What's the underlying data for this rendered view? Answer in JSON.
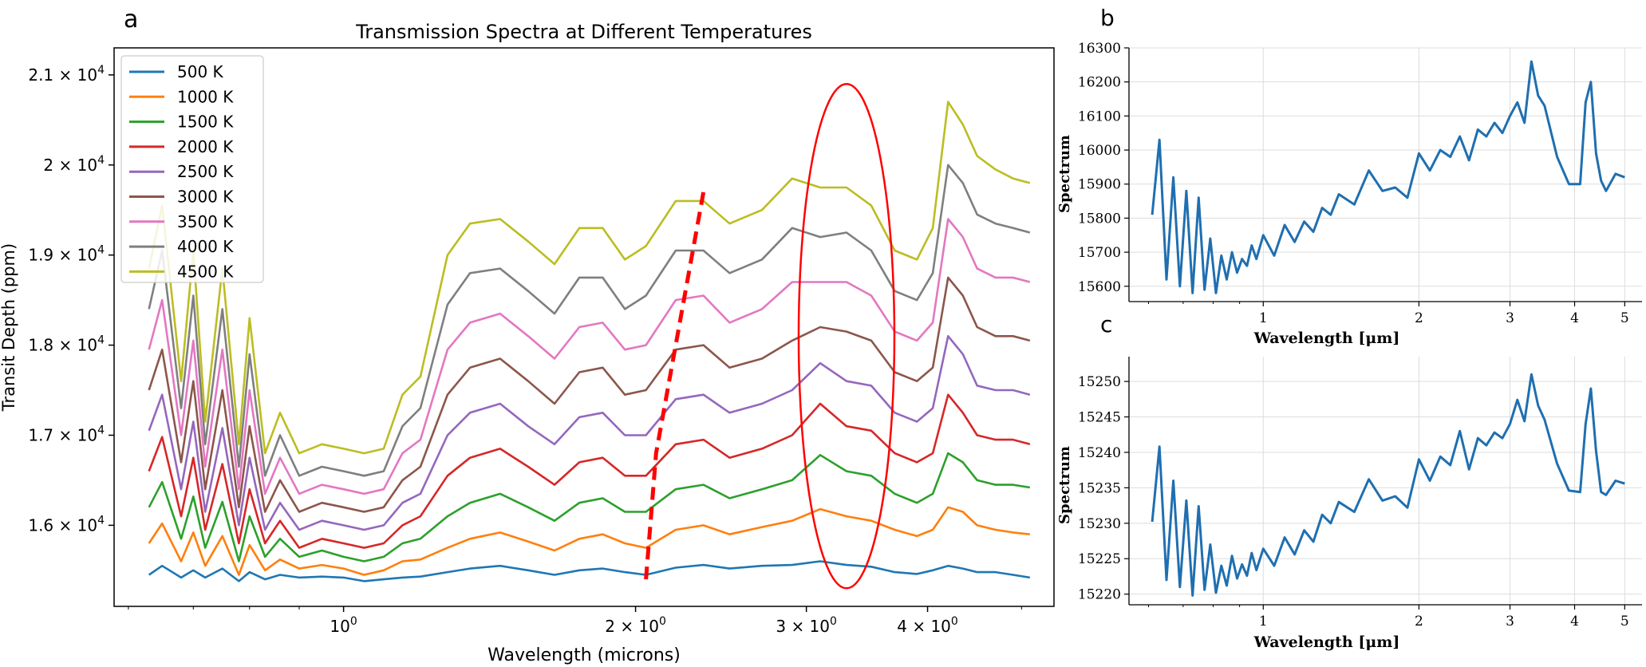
{
  "panel_labels": {
    "a": "a",
    "b": "b",
    "c": "c"
  },
  "colors": {
    "annotation": "#ff0000",
    "b_c_line": "#1f6fb0",
    "series": [
      "#1f77b4",
      "#ff7f0e",
      "#2ca02c",
      "#d62728",
      "#9467bd",
      "#8c564b",
      "#e377c2",
      "#7f7f7f",
      "#bcbd22"
    ]
  },
  "chart_data": [
    {
      "id": "a",
      "type": "line",
      "title": "Transmission Spectra at Different Temperatures",
      "xlabel": "Wavelength (microns)",
      "ylabel": "Transit Depth (ppm)",
      "xscale": "log",
      "xlim": [
        0.58,
        5.4
      ],
      "ylim": [
        15100,
        21300
      ],
      "xticks": [
        {
          "value": 1,
          "base": "10",
          "exp": "0"
        },
        {
          "value": 2,
          "base": "2 × 10",
          "exp": "0"
        },
        {
          "value": 3,
          "base": "3 × 10",
          "exp": "0"
        },
        {
          "value": 4,
          "base": "4 × 10",
          "exp": "0"
        }
      ],
      "yticks": [
        {
          "value": 16000,
          "base": "1.6 × 10",
          "exp": "4"
        },
        {
          "value": 17000,
          "base": "1.7 × 10",
          "exp": "4"
        },
        {
          "value": 18000,
          "base": "1.8 × 10",
          "exp": "4"
        },
        {
          "value": 19000,
          "base": "1.9 × 10",
          "exp": "4"
        },
        {
          "value": 20000,
          "base": "2 × 10",
          "exp": "4"
        },
        {
          "value": 21000,
          "base": "2.1 × 10",
          "exp": "4"
        }
      ],
      "legend_position": "upper-left",
      "x": [
        0.63,
        0.65,
        0.68,
        0.7,
        0.72,
        0.75,
        0.78,
        0.8,
        0.83,
        0.86,
        0.9,
        0.95,
        1.0,
        1.05,
        1.1,
        1.15,
        1.2,
        1.28,
        1.35,
        1.45,
        1.55,
        1.65,
        1.75,
        1.85,
        1.95,
        2.05,
        2.2,
        2.35,
        2.5,
        2.7,
        2.9,
        3.1,
        3.3,
        3.5,
        3.7,
        3.9,
        4.05,
        4.2,
        4.35,
        4.5,
        4.7,
        4.9,
        5.1
      ],
      "series": [
        {
          "name": "500 K",
          "values": [
            15450,
            15550,
            15420,
            15500,
            15420,
            15520,
            15380,
            15480,
            15400,
            15450,
            15420,
            15430,
            15420,
            15380,
            15400,
            15420,
            15430,
            15480,
            15520,
            15550,
            15500,
            15450,
            15500,
            15520,
            15480,
            15450,
            15530,
            15560,
            15520,
            15550,
            15560,
            15600,
            15560,
            15540,
            15480,
            15460,
            15500,
            15550,
            15520,
            15480,
            15480,
            15450,
            15420
          ]
        },
        {
          "name": "1000 K",
          "values": [
            15800,
            16020,
            15600,
            15920,
            15550,
            15880,
            15450,
            15780,
            15500,
            15620,
            15520,
            15560,
            15520,
            15450,
            15500,
            15600,
            15620,
            15750,
            15850,
            15920,
            15820,
            15720,
            15850,
            15900,
            15800,
            15750,
            15950,
            16000,
            15900,
            15980,
            16050,
            16180,
            16100,
            16050,
            15950,
            15880,
            15950,
            16200,
            16150,
            16000,
            15950,
            15920,
            15900
          ]
        },
        {
          "name": "1500 K",
          "values": [
            16200,
            16480,
            15850,
            16320,
            15750,
            16260,
            15600,
            16100,
            15650,
            15850,
            15650,
            15720,
            15650,
            15600,
            15650,
            15800,
            15850,
            16100,
            16250,
            16350,
            16200,
            16050,
            16250,
            16300,
            16150,
            16150,
            16400,
            16450,
            16300,
            16400,
            16500,
            16780,
            16600,
            16550,
            16350,
            16250,
            16350,
            16800,
            16700,
            16500,
            16450,
            16450,
            16420
          ]
        },
        {
          "name": "2000 K",
          "values": [
            16600,
            16980,
            16100,
            16750,
            15950,
            16680,
            15800,
            16400,
            15800,
            16050,
            15750,
            15850,
            15800,
            15750,
            15800,
            16000,
            16100,
            16550,
            16750,
            16850,
            16650,
            16450,
            16700,
            16750,
            16550,
            16550,
            16900,
            16950,
            16750,
            16850,
            17000,
            17350,
            17100,
            17050,
            16800,
            16700,
            16800,
            17450,
            17250,
            17000,
            16950,
            16950,
            16900
          ]
        },
        {
          "name": "2500 K",
          "values": [
            17050,
            17450,
            16400,
            17150,
            16150,
            17080,
            16000,
            16750,
            15950,
            16250,
            15950,
            16050,
            16000,
            15950,
            16000,
            16250,
            16350,
            17000,
            17250,
            17350,
            17100,
            16900,
            17200,
            17250,
            17000,
            17000,
            17400,
            17450,
            17250,
            17350,
            17500,
            17800,
            17600,
            17550,
            17250,
            17150,
            17300,
            18100,
            17900,
            17550,
            17500,
            17500,
            17450
          ]
        },
        {
          "name": "3000 K",
          "values": [
            17500,
            17950,
            16700,
            17600,
            16400,
            17500,
            16200,
            17100,
            16150,
            16500,
            16150,
            16250,
            16200,
            16150,
            16200,
            16500,
            16650,
            17450,
            17750,
            17850,
            17600,
            17350,
            17700,
            17750,
            17450,
            17500,
            17950,
            18000,
            17750,
            17850,
            18050,
            18200,
            18150,
            18050,
            17700,
            17600,
            17750,
            18750,
            18550,
            18200,
            18100,
            18100,
            18050
          ]
        },
        {
          "name": "3500 K",
          "values": [
            17950,
            18500,
            17000,
            18050,
            16650,
            17950,
            16400,
            17500,
            16350,
            16750,
            16350,
            16450,
            16400,
            16350,
            16400,
            16800,
            16950,
            17950,
            18250,
            18350,
            18100,
            17850,
            18200,
            18250,
            17950,
            18000,
            18500,
            18550,
            18250,
            18400,
            18700,
            18700,
            18700,
            18550,
            18150,
            18050,
            18250,
            19400,
            19200,
            18850,
            18750,
            18750,
            18700
          ]
        },
        {
          "name": "4000 K",
          "values": [
            18400,
            19050,
            17300,
            18550,
            16900,
            18400,
            16650,
            17900,
            16550,
            17000,
            16550,
            16650,
            16600,
            16550,
            16600,
            17100,
            17300,
            18450,
            18800,
            18850,
            18600,
            18350,
            18750,
            18750,
            18400,
            18550,
            19050,
            19050,
            18800,
            18950,
            19300,
            19200,
            19250,
            19050,
            18600,
            18500,
            18800,
            20000,
            19800,
            19450,
            19350,
            19300,
            19250
          ]
        },
        {
          "name": "4500 K",
          "values": [
            18850,
            19550,
            17600,
            19050,
            17150,
            18850,
            16900,
            18300,
            16800,
            17250,
            16800,
            16900,
            16850,
            16800,
            16850,
            17450,
            17650,
            19000,
            19350,
            19400,
            19150,
            18900,
            19300,
            19300,
            18950,
            19100,
            19600,
            19600,
            19350,
            19500,
            19850,
            19750,
            19750,
            19550,
            19050,
            18950,
            19300,
            20700,
            20450,
            20100,
            19950,
            19850,
            19800
          ]
        }
      ],
      "annotations": [
        {
          "type": "dashed-line",
          "points": [
            [
              2.05,
              15400
            ],
            [
              2.1,
              16800
            ],
            [
              2.35,
              19700
            ]
          ]
        },
        {
          "type": "ellipse",
          "center": [
            3.3,
            18100
          ],
          "label": "circled region"
        }
      ]
    },
    {
      "id": "b",
      "type": "line",
      "title": "",
      "xlabel": "Wavelength [μm]",
      "ylabel": "Spectrum",
      "xscale": "log",
      "xlim": [
        0.55,
        5.4
      ],
      "ylim": [
        15555,
        16300
      ],
      "xticks": [
        "1",
        "2",
        "3",
        "4",
        "5"
      ],
      "yticks": [
        15600,
        15700,
        15800,
        15900,
        16000,
        16100,
        16200,
        16300
      ],
      "grid": true,
      "x": [
        0.61,
        0.63,
        0.65,
        0.67,
        0.69,
        0.71,
        0.73,
        0.75,
        0.77,
        0.79,
        0.81,
        0.83,
        0.85,
        0.87,
        0.89,
        0.91,
        0.93,
        0.95,
        0.97,
        1.0,
        1.05,
        1.1,
        1.15,
        1.2,
        1.25,
        1.3,
        1.35,
        1.4,
        1.5,
        1.6,
        1.7,
        1.8,
        1.9,
        2.0,
        2.1,
        2.2,
        2.3,
        2.4,
        2.5,
        2.6,
        2.7,
        2.8,
        2.9,
        3.0,
        3.1,
        3.2,
        3.3,
        3.4,
        3.5,
        3.7,
        3.9,
        4.1,
        4.2,
        4.3,
        4.4,
        4.5,
        4.6,
        4.8,
        5.0
      ],
      "values": [
        15810,
        16030,
        15620,
        15920,
        15600,
        15880,
        15580,
        15860,
        15590,
        15740,
        15580,
        15690,
        15620,
        15700,
        15640,
        15680,
        15660,
        15720,
        15680,
        15750,
        15690,
        15780,
        15730,
        15790,
        15760,
        15830,
        15810,
        15870,
        15840,
        15940,
        15880,
        15890,
        15860,
        15990,
        15940,
        16000,
        15980,
        16040,
        15970,
        16060,
        16040,
        16080,
        16050,
        16100,
        16140,
        16080,
        16260,
        16160,
        16130,
        15980,
        15900,
        15900,
        16140,
        16200,
        15990,
        15910,
        15880,
        15930,
        15920
      ]
    },
    {
      "id": "c",
      "type": "line",
      "title": "",
      "xlabel": "Wavelength [μm]",
      "ylabel": "Spectrum",
      "xscale": "log",
      "xlim": [
        0.55,
        5.4
      ],
      "ylim": [
        15218.5,
        15253.5
      ],
      "xticks": [
        "1",
        "2",
        "3",
        "4",
        "5"
      ],
      "yticks": [
        15220,
        15225,
        15230,
        15235,
        15240,
        15245,
        15250
      ],
      "grid": true,
      "x": [
        0.61,
        0.63,
        0.65,
        0.67,
        0.69,
        0.71,
        0.73,
        0.75,
        0.77,
        0.79,
        0.81,
        0.83,
        0.85,
        0.87,
        0.89,
        0.91,
        0.93,
        0.95,
        0.97,
        1.0,
        1.05,
        1.1,
        1.15,
        1.2,
        1.25,
        1.3,
        1.35,
        1.4,
        1.5,
        1.6,
        1.7,
        1.8,
        1.9,
        2.0,
        2.1,
        2.2,
        2.3,
        2.4,
        2.5,
        2.6,
        2.7,
        2.8,
        2.9,
        3.0,
        3.1,
        3.2,
        3.3,
        3.4,
        3.5,
        3.7,
        3.9,
        4.1,
        4.2,
        4.3,
        4.4,
        4.5,
        4.6,
        4.8,
        5.0
      ],
      "values": [
        15230.2,
        15240.8,
        15222.0,
        15236.0,
        15221.0,
        15233.2,
        15219.8,
        15232.4,
        15220.6,
        15227.0,
        15220.2,
        15224.0,
        15221.2,
        15225.4,
        15222.2,
        15224.2,
        15222.6,
        15225.8,
        15223.4,
        15226.4,
        15224.0,
        15228.0,
        15225.6,
        15229.0,
        15227.4,
        15231.2,
        15230.0,
        15233.0,
        15231.6,
        15236.2,
        15233.2,
        15233.8,
        15232.2,
        15239.0,
        15236.0,
        15239.4,
        15238.2,
        15243.0,
        15237.6,
        15242.0,
        15241.0,
        15242.8,
        15242.0,
        15244.0,
        15247.4,
        15244.4,
        15251.0,
        15246.6,
        15244.6,
        15238.4,
        15234.6,
        15234.4,
        15244.0,
        15249.0,
        15240.2,
        15234.4,
        15234.0,
        15236.0,
        15235.6
      ]
    }
  ]
}
